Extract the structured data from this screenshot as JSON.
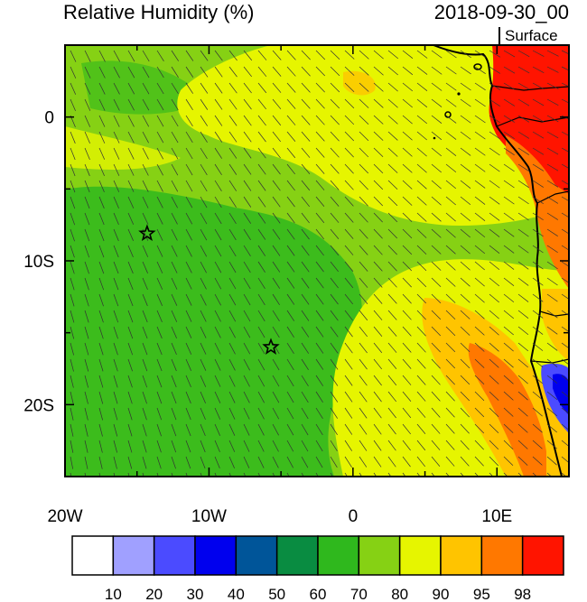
{
  "header": {
    "title": "Relative Humidity (%)",
    "datetime": "2018-09-30_00",
    "level": "Surface"
  },
  "axes": {
    "x_ticks": [
      {
        "lon": -20,
        "label": "20W"
      },
      {
        "lon": -10,
        "label": "10W"
      },
      {
        "lon": 0,
        "label": "0"
      },
      {
        "lon": 10,
        "label": "10E"
      }
    ],
    "y_ticks": [
      {
        "lat": 0,
        "label": "0"
      },
      {
        "lat": -10,
        "label": "10S"
      },
      {
        "lat": -20,
        "label": "20S"
      }
    ],
    "lon_range": [
      -20,
      15
    ],
    "lat_range": [
      -25,
      5
    ]
  },
  "colorbar": {
    "colors": [
      "#ffffff",
      "#a0a0ff",
      "#4b4bff",
      "#0000ee",
      "#005599",
      "#098c41",
      "#2fb81d",
      "#86d114",
      "#e6f500",
      "#ffc400",
      "#ff7800",
      "#ff1400"
    ],
    "labels": [
      "10",
      "20",
      "30",
      "40",
      "50",
      "60",
      "70",
      "80",
      "90",
      "95",
      "98"
    ]
  },
  "markers": [
    {
      "type": "star",
      "lon": -14.3,
      "lat": -8.1
    },
    {
      "type": "star",
      "lon": -5.7,
      "lat": -16.0
    }
  ],
  "colors": {
    "ocean_base": "#86d114",
    "dry": "#2fb81d",
    "moist": "#e6f500",
    "coast_humid": "#ffc400",
    "very_humid": "#ff7800",
    "saturated": "#ff1400",
    "low_rh": "#4b4bff"
  }
}
